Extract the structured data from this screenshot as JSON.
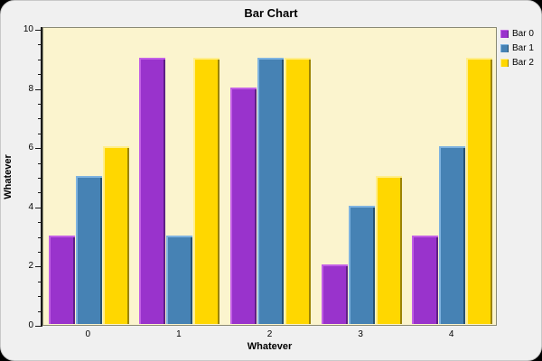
{
  "window": {
    "outer_background": "#000000",
    "frame_background": "#f0f0f0"
  },
  "chart_data": {
    "type": "bar",
    "title": "Bar Chart",
    "xlabel": "Whatever",
    "ylabel": "Whatever",
    "categories": [
      "0",
      "1",
      "2",
      "3",
      "4"
    ],
    "series": [
      {
        "name": "Bar 0",
        "color": "#9933cc",
        "highlight": "#c25fe6",
        "edge": "#5e1f86",
        "values": [
          3,
          9,
          8,
          2,
          3
        ]
      },
      {
        "name": "Bar 1",
        "color": "#4682b4",
        "highlight": "#7eb3e0",
        "edge": "#27516f",
        "values": [
          5,
          3,
          9,
          4,
          6
        ]
      },
      {
        "name": "Bar 2",
        "color": "#ffd700",
        "highlight": "#ffee8c",
        "edge": "#9c8405",
        "values": [
          6,
          9,
          9,
          5,
          9
        ]
      }
    ],
    "ylim": [
      0,
      10
    ],
    "yticks_major": [
      0,
      2,
      4,
      6,
      8,
      10
    ],
    "ytick_minor_step": 0.5,
    "plot_background": "#fbf4ce",
    "grid": false,
    "legend_position": "top-right"
  }
}
